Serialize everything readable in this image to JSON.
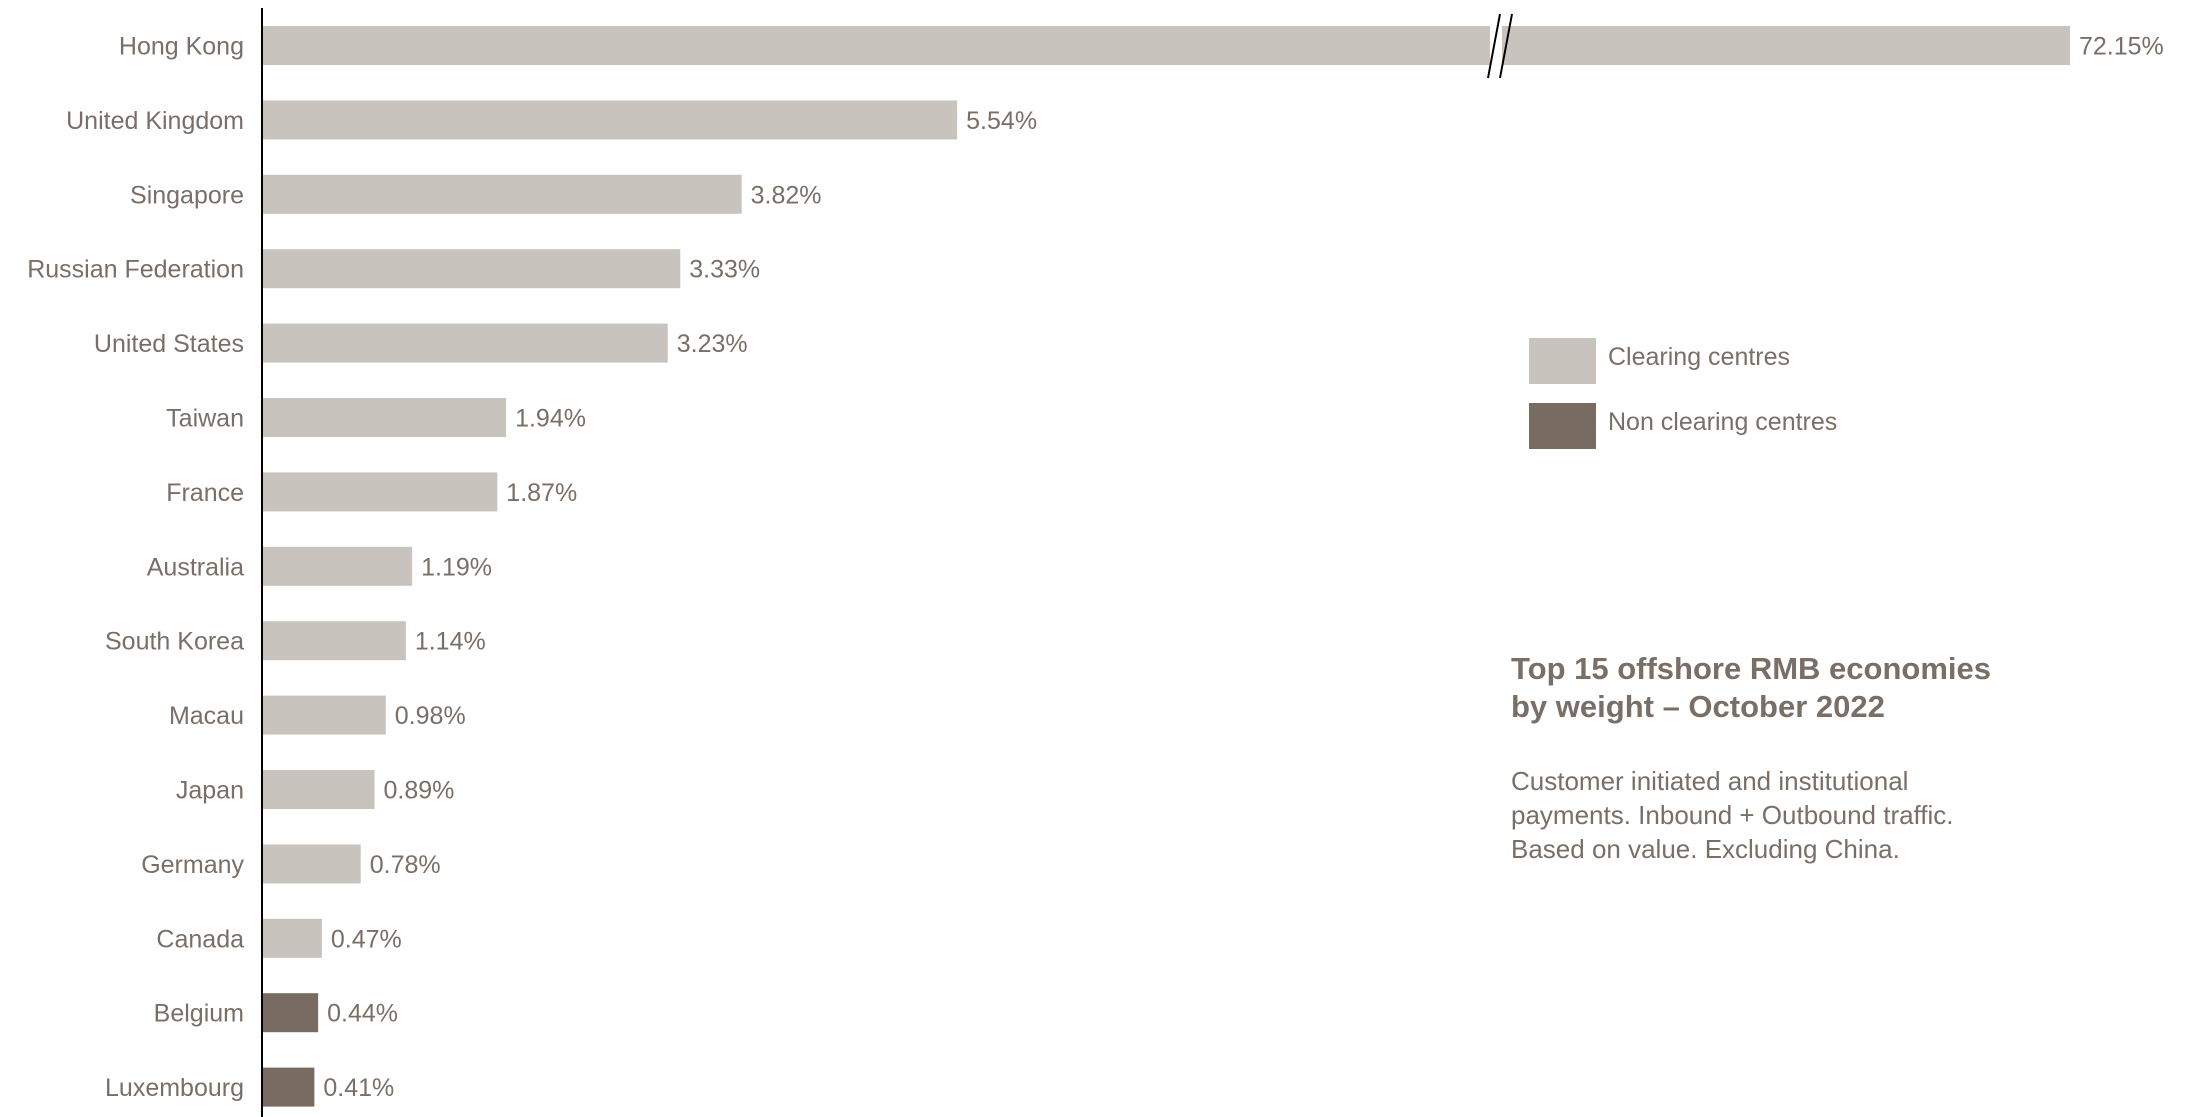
{
  "chart_data": {
    "type": "bar",
    "orientation": "horizontal",
    "title": "Top 15 offshore RMB economies by weight – October 2022",
    "title_lines": [
      "Top 15 offshore RMB economies",
      "by weight – October 2022"
    ],
    "subtitle_lines": [
      "Customer initiated and institutional",
      "payments. Inbound + Outbound traffic.",
      "Based on value. Excluding China."
    ],
    "xlabel": "",
    "ylabel": "",
    "grid": false,
    "axis_break": "Hong Kong bar is truncated with a // break mark",
    "legend_position": "right",
    "categories": [
      "Hong Kong",
      "United Kingdom",
      "Singapore",
      "Russian Federation",
      "United States",
      "Taiwan",
      "France",
      "Australia",
      "South Korea",
      "Macau",
      "Japan",
      "Germany",
      "Canada",
      "Belgium",
      "Luxembourg"
    ],
    "values": [
      72.15,
      5.54,
      3.82,
      3.33,
      3.23,
      1.94,
      1.87,
      1.19,
      1.14,
      0.98,
      0.89,
      0.78,
      0.47,
      0.44,
      0.41
    ],
    "value_labels": [
      "72.15%",
      "5.54%",
      "3.82%",
      "3.33%",
      "3.23%",
      "1.94%",
      "1.87%",
      "1.19%",
      "1.14%",
      "0.98%",
      "0.89%",
      "0.78%",
      "0.47%",
      "0.44%",
      "0.41%"
    ],
    "groups": [
      "clearing",
      "clearing",
      "clearing",
      "clearing",
      "clearing",
      "clearing",
      "clearing",
      "clearing",
      "clearing",
      "clearing",
      "clearing",
      "clearing",
      "clearing",
      "non_clearing",
      "non_clearing"
    ],
    "legend": [
      {
        "key": "clearing",
        "label": "Clearing centres",
        "color": "#c8c3bd"
      },
      {
        "key": "non_clearing",
        "label": "Non clearing centres",
        "color": "#786c62"
      }
    ]
  }
}
